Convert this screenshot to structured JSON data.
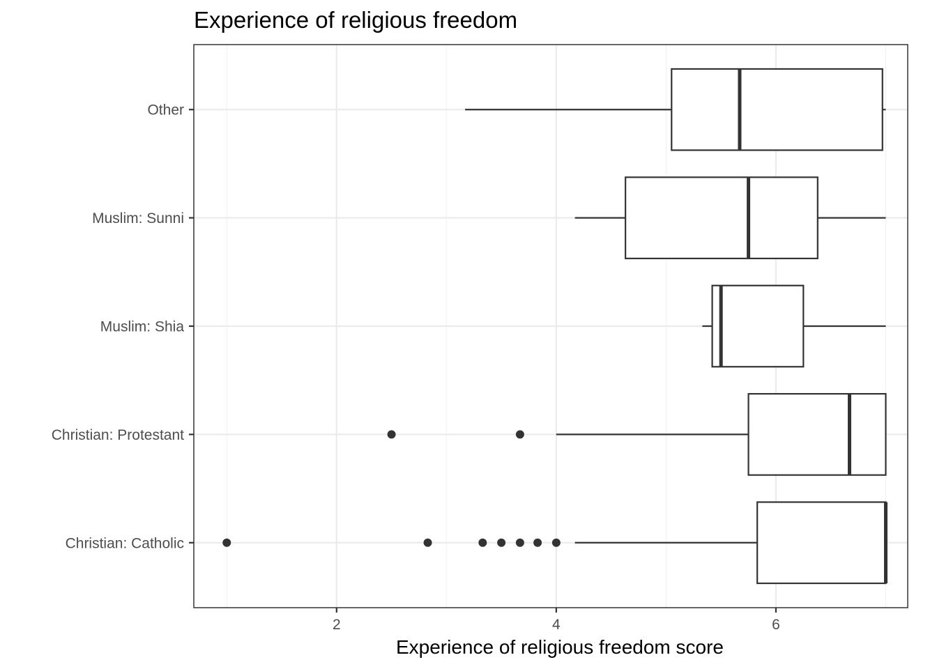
{
  "chart_data": {
    "type": "boxplot",
    "orientation": "horizontal",
    "title": "Experience of religious freedom",
    "xlabel": "Experience of religious freedom score",
    "ylabel": "",
    "xlim": [
      0.7,
      7.2
    ],
    "x_major_ticks": [
      2,
      4,
      6
    ],
    "x_minor_ticks": [
      1,
      3,
      5,
      7
    ],
    "x_tick_labels": [
      "2",
      "4",
      "6"
    ],
    "grid": true,
    "legend": "none",
    "categories": [
      "Other",
      "Muslim: Sunni",
      "Muslim: Shia",
      "Christian: Protestant",
      "Christian: Catholic"
    ],
    "boxes": [
      {
        "category": "Other",
        "whisker_low": 3.17,
        "q1": 5.05,
        "median": 5.67,
        "q3": 6.97,
        "whisker_high": 7.0,
        "outliers": []
      },
      {
        "category": "Muslim: Sunni",
        "whisker_low": 4.17,
        "q1": 4.63,
        "median": 5.75,
        "q3": 6.38,
        "whisker_high": 7.0,
        "outliers": []
      },
      {
        "category": "Muslim: Shia",
        "whisker_low": 5.33,
        "q1": 5.42,
        "median": 5.5,
        "q3": 6.25,
        "whisker_high": 7.0,
        "outliers": []
      },
      {
        "category": "Christian: Protestant",
        "whisker_low": 4.0,
        "q1": 5.75,
        "median": 6.67,
        "q3": 7.0,
        "whisker_high": 7.0,
        "outliers": [
          2.5,
          3.67
        ]
      },
      {
        "category": "Christian: Catholic",
        "whisker_low": 4.17,
        "q1": 5.83,
        "median": 7.0,
        "q3": 7.0,
        "whisker_high": 7.0,
        "outliers": [
          1.0,
          2.83,
          3.33,
          3.5,
          3.67,
          3.83,
          4.0
        ]
      }
    ]
  },
  "colors": {
    "box_stroke": "#333333",
    "box_fill": "#ffffff",
    "grid_major": "#ebebeb",
    "grid_minor": "#f2f2f2",
    "tick_text": "#4d4d4d"
  }
}
